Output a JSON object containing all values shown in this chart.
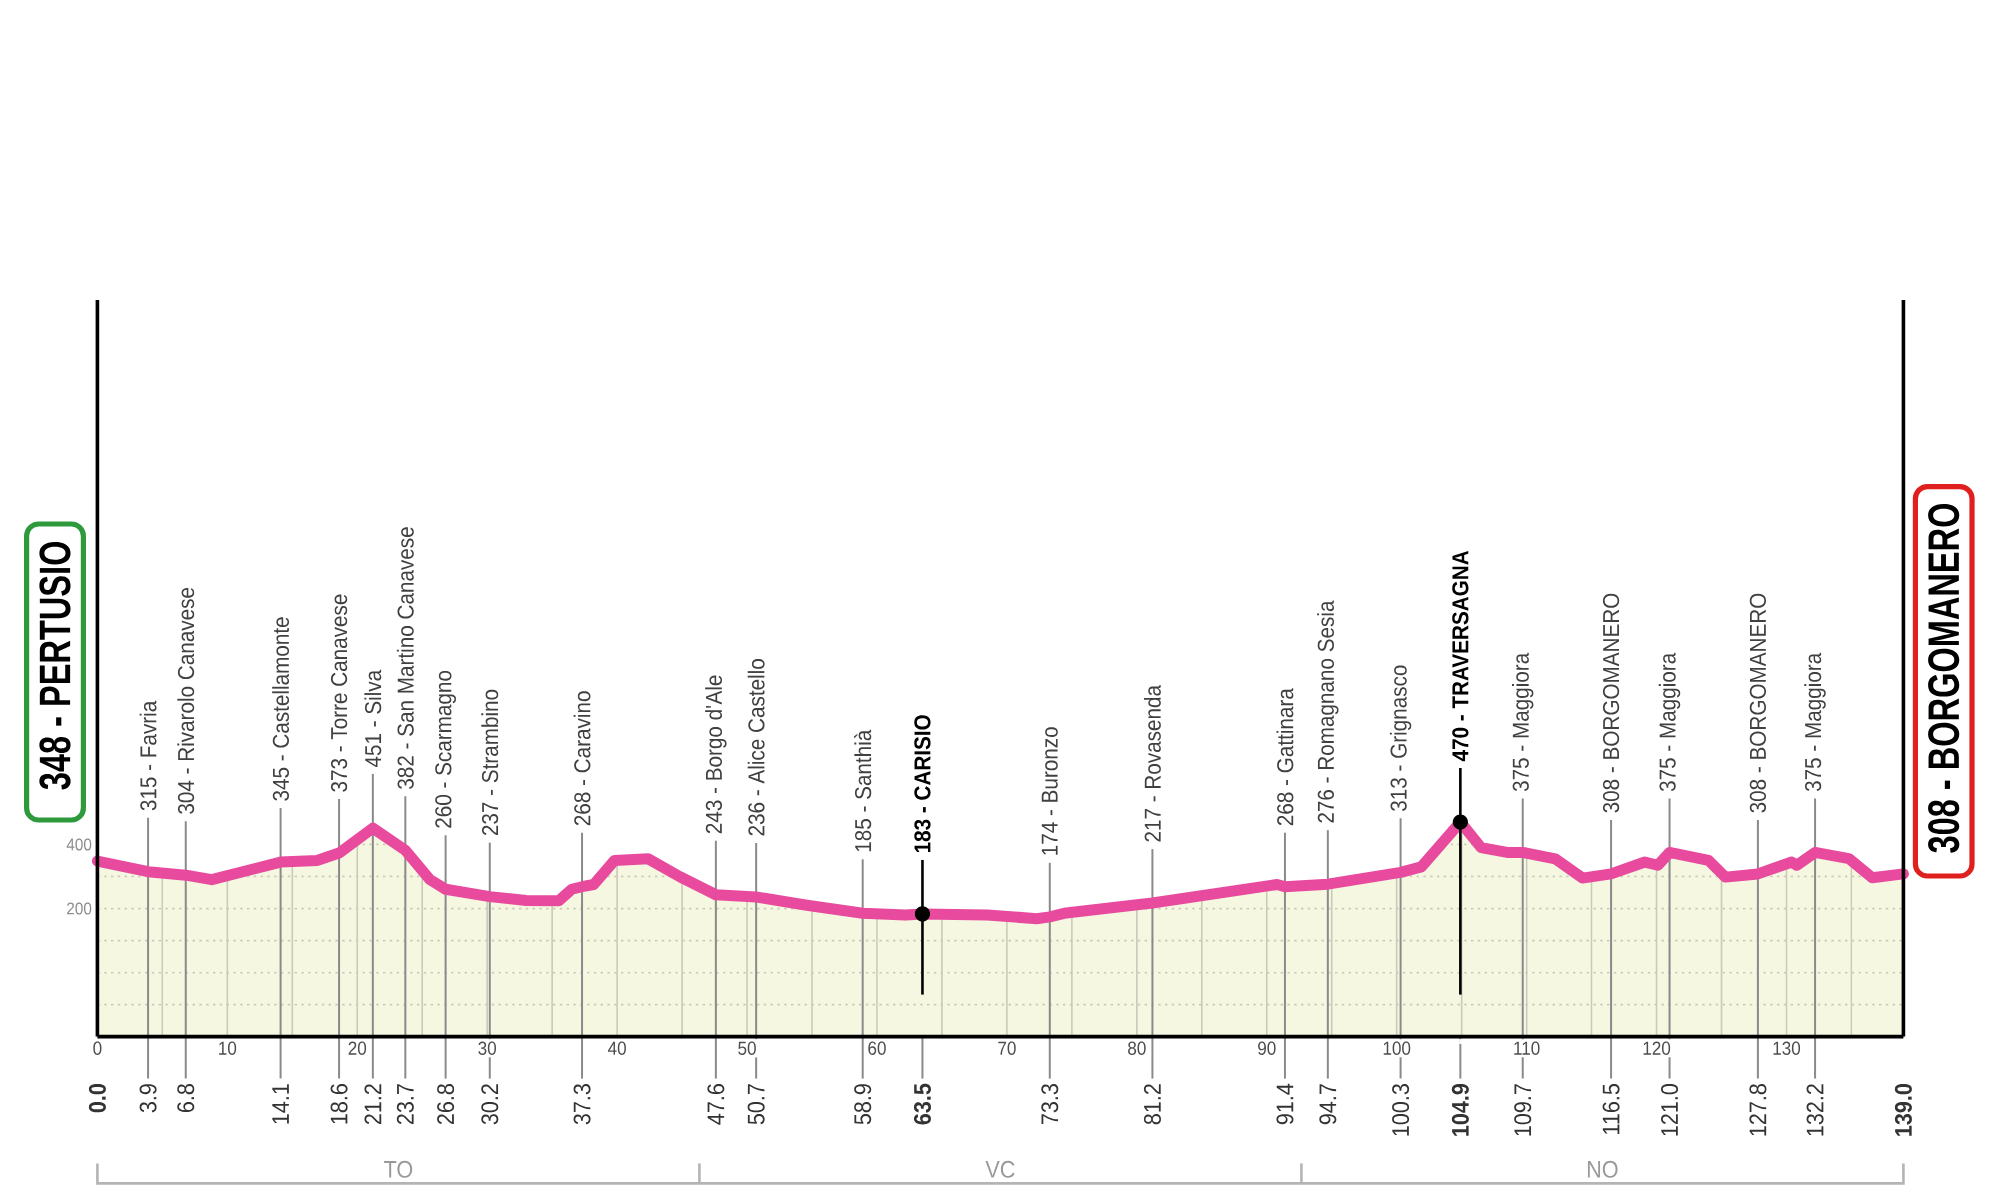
{
  "chart_data": {
    "type": "area",
    "x": [
      0,
      3.9,
      6.8,
      8.8,
      14.1,
      16.9,
      18.6,
      21.2,
      23.7,
      25.6,
      26.8,
      30.2,
      33.0,
      35.5,
      36.5,
      37.3,
      38.2,
      39.8,
      42.4,
      44.8,
      47.6,
      50.7,
      54.6,
      58.9,
      62.2,
      63.5,
      68.5,
      72.3,
      73.3,
      74.4,
      81.2,
      90.8,
      91.4,
      94.7,
      100.3,
      101.9,
      104.9,
      106.5,
      108.5,
      109.7,
      112.2,
      114.3,
      116.5,
      119.1,
      120.1,
      121.0,
      124.0,
      125.3,
      127.8,
      130.4,
      130.8,
      132.2,
      134.8,
      136.6,
      139
    ],
    "values": [
      348,
      315,
      304,
      290,
      345,
      350,
      373,
      451,
      382,
      290,
      260,
      237,
      225,
      224,
      260,
      268,
      275,
      350,
      355,
      300,
      243,
      236,
      210,
      185,
      180,
      183,
      180,
      168,
      174,
      185,
      217,
      275,
      268,
      276,
      313,
      330,
      470,
      390,
      375,
      375,
      355,
      295,
      308,
      345,
      335,
      375,
      350,
      298,
      308,
      345,
      335,
      375,
      356,
      296,
      308
    ],
    "color": "#e84a9e",
    "xlim": [
      0,
      139
    ],
    "ylim": [
      -200,
      2100
    ],
    "xticks": [
      0,
      {
        "value": 5,
        "label": null
      },
      10,
      {
        "value": 15,
        "label": null
      },
      20,
      {
        "value": 25,
        "label": null
      },
      30,
      {
        "value": 35,
        "label": null
      },
      40,
      {
        "value": 45,
        "label": null
      },
      50,
      {
        "value": 55,
        "label": null
      },
      60,
      {
        "value": 65,
        "label": null
      },
      70,
      {
        "value": 75,
        "label": null
      },
      80,
      {
        "value": 85,
        "label": null
      },
      90,
      {
        "value": 95,
        "label": null
      },
      100,
      {
        "value": 105,
        "label": null
      },
      110,
      {
        "value": 115,
        "label": null
      },
      120,
      {
        "value": 125,
        "label": null
      },
      130,
      {
        "value": 135,
        "label": null
      }
    ],
    "yticks": [
      {
        "value": -100,
        "label": null
      },
      {
        "value": 0,
        "label": null
      },
      {
        "value": 100,
        "label": null
      },
      200,
      {
        "value": 300,
        "label": null
      },
      400
    ],
    "x2lim": [
      0,
      139
    ],
    "x2ticks": [
      {
        "value": 0,
        "label": "0.0"
      },
      3.9,
      6.8,
      14.1,
      18.6,
      21.2,
      23.7,
      26.8,
      30.2,
      37.3,
      47.6,
      50.7,
      58.9,
      63.5,
      73.3,
      81.2,
      91.4,
      94.7,
      100.3,
      104.9,
      109.7,
      116.5,
      {
        "value": 121,
        "label": "121.0"
      },
      127.8,
      132.2,
      {
        "value": 139,
        "label": "139.0"
      }
    ],
    "grid": true,
    "bands": [
      {
        "axis": "y",
        "from": -200,
        "to": 0,
        "color": "#f5f7e0"
      }
    ],
    "ref_lines": [
      {
        "axis": "x",
        "value": 3.9,
        "label": "315 - Favria"
      },
      {
        "axis": "x",
        "value": 6.8,
        "label": "304 - Rivarolo Canavese"
      },
      {
        "axis": "x",
        "value": 14.1,
        "label": "345 - Castellamonte"
      },
      {
        "axis": "x",
        "value": 18.6,
        "label": "373 - Torre Canavese"
      },
      {
        "axis": "x",
        "value": 21.2,
        "label": "451 - Silva"
      },
      {
        "axis": "x",
        "value": 23.7,
        "label": "382 - San Martino Canavese"
      },
      {
        "axis": "x",
        "value": 26.8,
        "label": "260 - Scarmagno"
      },
      {
        "axis": "x",
        "value": 30.2,
        "label": "237 - Strambino"
      },
      {
        "axis": "x",
        "value": 37.3,
        "label": "268 - Caravino"
      },
      {
        "axis": "x",
        "value": 47.6,
        "label": "243 - Borgo d'Ale"
      },
      {
        "axis": "x",
        "value": 50.7,
        "label": "236 - Alice Castello"
      },
      {
        "axis": "x",
        "value": 58.9,
        "label": "185 - Santhià"
      },
      {
        "axis": "x",
        "value": 73.3,
        "label": "174 - Buronzo"
      },
      {
        "axis": "x",
        "value": 81.2,
        "label": "217 - Rovasenda"
      },
      {
        "axis": "x",
        "value": 91.4,
        "label": "268 - Gattinara"
      },
      {
        "axis": "x",
        "value": 94.7,
        "label": "276 - Romagnano Sesia"
      },
      {
        "axis": "x",
        "value": 100.3,
        "label": "313 - Grignasco"
      },
      {
        "axis": "x",
        "value": 109.7,
        "label": "375 - Maggiora"
      },
      {
        "axis": "x",
        "value": 116.5,
        "label": "308 - BORGOMANERO"
      },
      {
        "axis": "x",
        "value": 121.0,
        "label": "375 - Maggiora"
      },
      {
        "axis": "x",
        "value": 127.8,
        "label": "308 - BORGOMANERO"
      },
      {
        "axis": "x",
        "value": 132.2,
        "label": "375 - Maggiora"
      }
    ],
    "annotations": [
      {
        "text": "348 - PERTUSIO",
        "x": 0,
        "y": 348
      },
      {
        "text": "183 - CARISIO",
        "x": 63.5,
        "y": 183
      },
      {
        "text": "470 - TRAVERSAGNA",
        "x": 104.9,
        "y": 470
      },
      {
        "text": "308 - BORGOMANERO",
        "x": 139,
        "y": 308
      },
      "TO",
      "VC",
      "NO"
    ]
  }
}
